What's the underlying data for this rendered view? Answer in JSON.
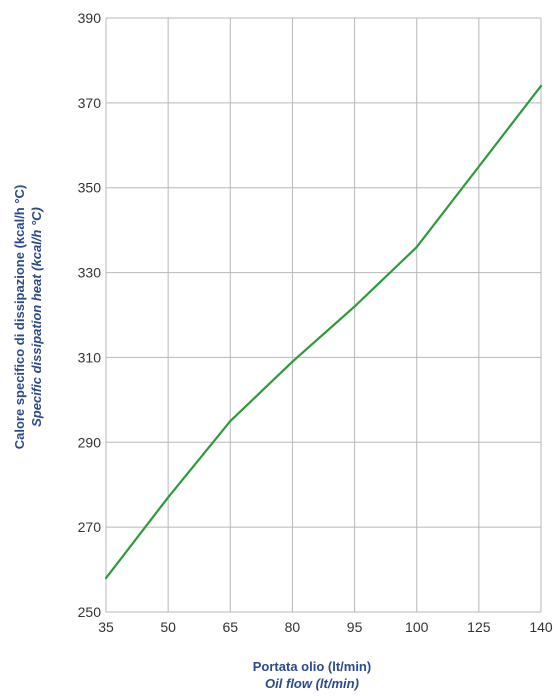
{
  "chart_data": {
    "type": "line",
    "x": [
      35,
      50,
      65,
      80,
      95,
      100,
      125,
      140
    ],
    "series": [
      {
        "color": "#2e9a3c",
        "values": [
          258,
          277,
          295,
          309,
          322,
          336,
          355,
          374
        ]
      }
    ],
    "x_tick_labels": [
      "35",
      "50",
      "65",
      "80",
      "95",
      "100",
      "125",
      "140"
    ],
    "y_ticks": [
      250,
      270,
      290,
      310,
      330,
      350,
      370,
      390
    ],
    "y_tick_labels": [
      "250",
      "270",
      "290",
      "310",
      "330",
      "350",
      "370",
      "390"
    ],
    "ylim": [
      250,
      390
    ],
    "grid": true,
    "xlabel": "Portata olio (lt/min)",
    "xlabel_en": "Oil flow (lt/min)",
    "ylabel": "Calore specifico di dissipazione (kcal/h °C)",
    "ylabel_en": "Specific dissipation heat (kcal/h °C)",
    "label_color": "#2b4a8c",
    "grid_color": "#b8b8b8"
  }
}
